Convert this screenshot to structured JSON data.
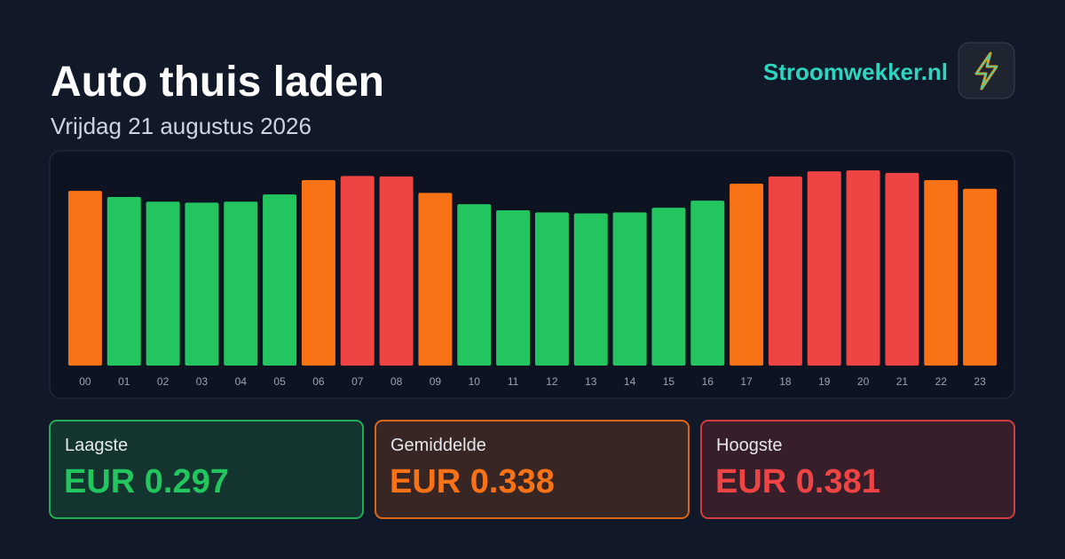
{
  "chart_data": {
    "type": "bar",
    "title": "Auto thuis laden",
    "subtitle": "Vrijdag 21 augustus 2026",
    "categories": [
      "00",
      "01",
      "02",
      "03",
      "04",
      "05",
      "06",
      "07",
      "08",
      "09",
      "10",
      "11",
      "12",
      "13",
      "14",
      "15",
      "16",
      "17",
      "18",
      "19",
      "20",
      "21",
      "22",
      "23"
    ],
    "values": [
      0.341,
      0.329,
      0.32,
      0.318,
      0.32,
      0.334,
      0.362,
      0.37,
      0.369,
      0.337,
      0.315,
      0.303,
      0.299,
      0.297,
      0.299,
      0.308,
      0.322,
      0.355,
      0.369,
      0.379,
      0.381,
      0.376,
      0.362,
      0.345
    ],
    "colors": [
      "#f97316",
      "#22c55e",
      "#22c55e",
      "#22c55e",
      "#22c55e",
      "#22c55e",
      "#f97316",
      "#ef4444",
      "#ef4444",
      "#f97316",
      "#22c55e",
      "#22c55e",
      "#22c55e",
      "#22c55e",
      "#22c55e",
      "#22c55e",
      "#22c55e",
      "#f97316",
      "#ef4444",
      "#ef4444",
      "#ef4444",
      "#ef4444",
      "#f97316",
      "#f97316"
    ]
  },
  "brand": "Stroomwekker.nl",
  "stats": [
    {
      "label": "Laagste",
      "value": "EUR 0.297",
      "color": "#22c55e"
    },
    {
      "label": "Gemiddelde",
      "value": "EUR 0.338",
      "color": "#f97316"
    },
    {
      "label": "Hoogste",
      "value": "EUR 0.381",
      "color": "#ef4444"
    }
  ]
}
